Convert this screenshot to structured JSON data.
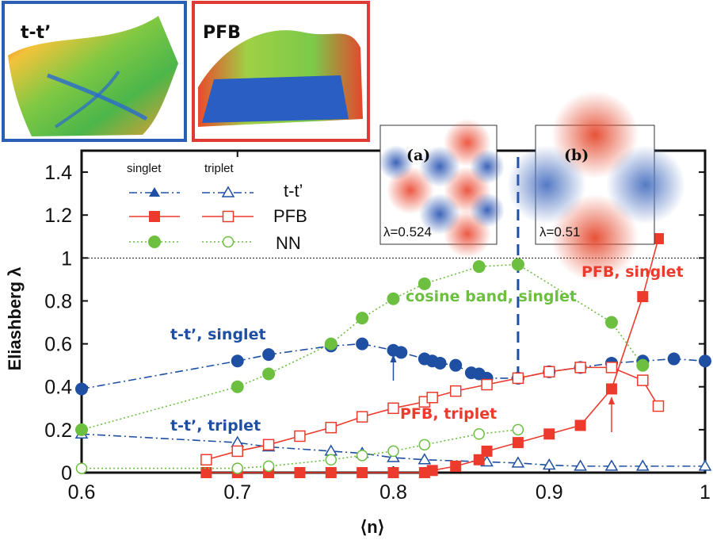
{
  "chart_data": {
    "type": "line",
    "xlabel": "⟨n⟩",
    "ylabel": "Eliashberg λ",
    "xlim": [
      0.6,
      1.0
    ],
    "ylim": [
      0,
      1.5
    ],
    "xticks": [
      "0.6",
      "0.7",
      "0.8",
      "0.9",
      "1"
    ],
    "yticks": [
      "0",
      "0.2",
      "0.4",
      "0.6",
      "0.8",
      "1",
      "1.2",
      "1.4"
    ],
    "reference_line": 1.0,
    "vertical_line_x": 0.88,
    "legend": {
      "headers": [
        "singlet",
        "triplet"
      ],
      "rows": [
        "t-t’",
        "PFB",
        "NN"
      ]
    },
    "colors": {
      "tt": "#1f4fa3",
      "pfb": "#ec3b2d",
      "nn": "#6cbf3f"
    },
    "series": [
      {
        "name": "t-t’ singlet",
        "color": "#1f4fa3",
        "marker": "filled-circle",
        "line": "dashdot",
        "x": [
          0.6,
          0.7,
          0.72,
          0.76,
          0.78,
          0.8,
          0.805,
          0.82,
          0.825,
          0.83,
          0.84,
          0.85,
          0.855,
          0.86,
          0.88,
          0.9,
          0.92,
          0.94,
          0.96,
          0.98,
          1.0
        ],
        "y": [
          0.39,
          0.52,
          0.55,
          0.59,
          0.6,
          0.57,
          0.56,
          0.53,
          0.52,
          0.51,
          0.5,
          0.465,
          0.46,
          0.44,
          0.44,
          0.47,
          0.49,
          0.51,
          0.52,
          0.53,
          0.52
        ]
      },
      {
        "name": "t-t’ triplet",
        "color": "#1f4fa3",
        "marker": "open-triangle",
        "line": "dashdot",
        "x": [
          0.6,
          0.7,
          0.72,
          0.76,
          0.78,
          0.8,
          0.82,
          0.86,
          0.88,
          0.9,
          0.92,
          0.94,
          0.96,
          1.0
        ],
        "y": [
          0.18,
          0.14,
          0.12,
          0.1,
          0.09,
          0.07,
          0.06,
          0.05,
          0.045,
          0.035,
          0.03,
          0.03,
          0.03,
          0.03
        ]
      },
      {
        "name": "PFB singlet",
        "color": "#ec3b2d",
        "marker": "filled-square",
        "line": "solid",
        "x": [
          0.68,
          0.7,
          0.72,
          0.74,
          0.76,
          0.78,
          0.8,
          0.82,
          0.825,
          0.84,
          0.855,
          0.86,
          0.88,
          0.9,
          0.92,
          0.94,
          0.96,
          0.97
        ],
        "y": [
          0.0,
          0.0,
          0.0,
          0.0,
          0.0,
          0.0,
          0.0,
          0.0,
          0.01,
          0.03,
          0.06,
          0.1,
          0.14,
          0.18,
          0.22,
          0.39,
          0.82,
          1.09
        ]
      },
      {
        "name": "PFB triplet",
        "color": "#ec3b2d",
        "marker": "open-square",
        "line": "solid",
        "x": [
          0.68,
          0.7,
          0.72,
          0.74,
          0.76,
          0.78,
          0.8,
          0.82,
          0.825,
          0.84,
          0.86,
          0.88,
          0.9,
          0.92,
          0.94,
          0.96,
          0.97
        ],
        "y": [
          0.06,
          0.1,
          0.13,
          0.17,
          0.21,
          0.26,
          0.3,
          0.33,
          0.35,
          0.38,
          0.41,
          0.44,
          0.47,
          0.49,
          0.49,
          0.43,
          0.31
        ]
      },
      {
        "name": "NN singlet",
        "color": "#6cbf3f",
        "marker": "filled-circle",
        "line": "dotted",
        "x": [
          0.6,
          0.7,
          0.72,
          0.76,
          0.78,
          0.8,
          0.82,
          0.855,
          0.88,
          0.94,
          0.96
        ],
        "y": [
          0.2,
          0.4,
          0.46,
          0.6,
          0.72,
          0.81,
          0.88,
          0.96,
          0.97,
          0.7,
          0.5
        ]
      },
      {
        "name": "NN triplet",
        "color": "#6cbf3f",
        "marker": "open-circle",
        "line": "dotted",
        "x": [
          0.6,
          0.7,
          0.72,
          0.76,
          0.78,
          0.8,
          0.82,
          0.855,
          0.88
        ],
        "y": [
          0.02,
          0.02,
          0.03,
          0.06,
          0.08,
          0.1,
          0.13,
          0.18,
          0.2
        ]
      }
    ],
    "annotations": [
      {
        "text": "t-t’, singlet",
        "color": "#1f4fa3"
      },
      {
        "text": "t-t’, triplet",
        "color": "#1f4fa3"
      },
      {
        "text": "cosine band, singlet",
        "color": "#6cbf3f"
      },
      {
        "text": "PFB, singlet",
        "color": "#ec3b2d"
      },
      {
        "text": "PFB, triplet",
        "color": "#ec3b2d"
      }
    ],
    "arrows": [
      {
        "x": 0.8,
        "color": "#1f4fa3"
      },
      {
        "x": 0.94,
        "color": "#ec3b2d"
      }
    ]
  },
  "top_panels": [
    {
      "label": "t-t’",
      "frame_color": "#2b5fb5"
    },
    {
      "label": "PFB",
      "frame_color": "#e03a34"
    }
  ],
  "insets": [
    {
      "label": "(a)",
      "lambda_text": "λ=0.524"
    },
    {
      "label": "(b)",
      "lambda_text": "λ=0.51"
    }
  ]
}
